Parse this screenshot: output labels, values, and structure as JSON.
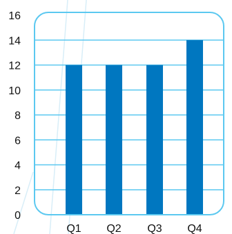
{
  "chart_data": {
    "type": "bar",
    "categories": [
      "Q1",
      "Q2",
      "Q3",
      "Q4"
    ],
    "values": [
      12,
      12,
      12,
      14
    ],
    "ylim": [
      0,
      16
    ],
    "yticks": [
      "0",
      "2",
      "4",
      "6",
      "8",
      "10",
      "12",
      "14",
      "16"
    ],
    "grid": true,
    "title": "",
    "xlabel": "",
    "ylabel": ""
  },
  "colors": {
    "bar": "#0077c0",
    "grid": "#5bc8f0",
    "frame": "#5bc8f0",
    "background_stroke": "#d8eef8"
  }
}
